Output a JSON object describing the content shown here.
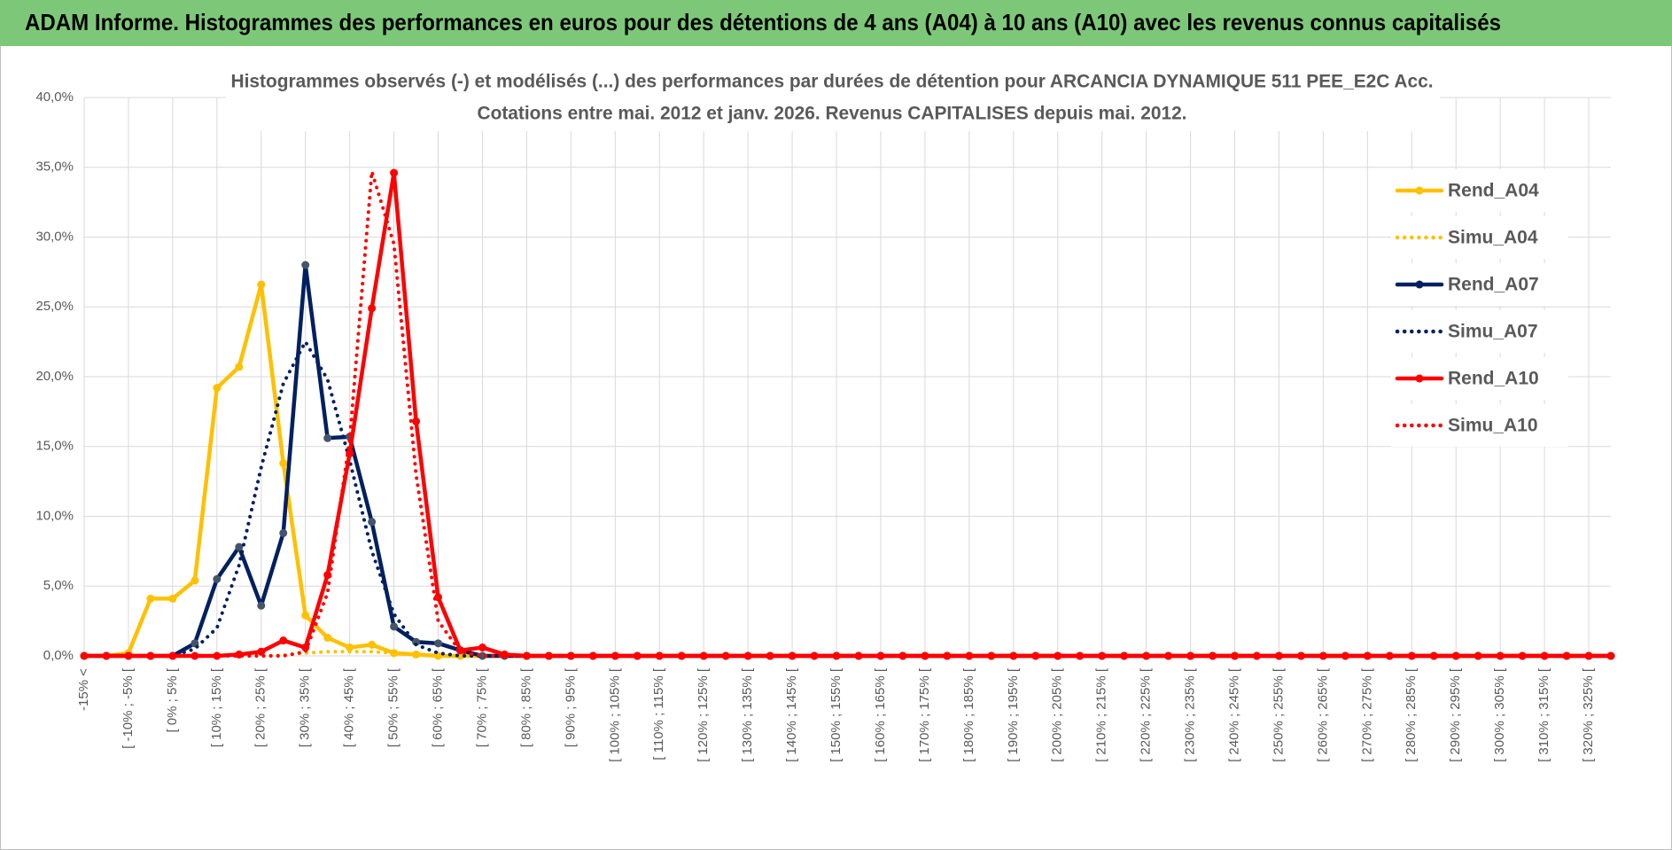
{
  "header": {
    "title": "ADAM Informe. Histogrammes des performances en euros pour des détentions de 4 ans (A04) à 10 ans (A10) avec les revenus connus capitalisés"
  },
  "chart_data": {
    "type": "line",
    "title": "Histogrammes observés (-) et modélisés (...) des performances par durées de détention pour ARCANCIA DYNAMIQUE 511 PEE_E2C Acc.",
    "subtitle": "Cotations entre mai. 2012 et janv. 2026. Revenus CAPITALISES depuis mai. 2012.",
    "categories": [
      "-15% <",
      null,
      "[ -10% ; -5% [",
      null,
      "[ 0% ; 5% [",
      null,
      "[ 10% ; 15% [",
      null,
      "[ 20% ; 25% [",
      null,
      "[ 30% ; 35% [",
      null,
      "[ 40% ; 45% [",
      null,
      "[ 50% ; 55% [",
      null,
      "[ 60% ; 65% [",
      null,
      "[ 70% ; 75% [",
      null,
      "[ 80% ; 85% [",
      null,
      "[ 90% ; 95% [",
      null,
      "[ 100% ; 105% [",
      null,
      "[ 110% ; 115% [",
      null,
      "[ 120% ; 125% [",
      null,
      "[ 130% ; 135% [",
      null,
      "[ 140% ; 145% [",
      null,
      "[ 150% ; 155% [",
      null,
      "[ 160% ; 165% [",
      null,
      "[ 170% ; 175% [",
      null,
      "[ 180% ; 185% [",
      null,
      "[ 190% ; 195% [",
      null,
      "[ 200% ; 205% [",
      null,
      "[ 210% ; 215% [",
      null,
      "[ 220% ; 225% [",
      null,
      "[ 230% ; 235% [",
      null,
      "[ 240% ; 245% [",
      null,
      "[ 250% ; 255% [",
      null,
      "[ 260% ; 265% [",
      null,
      "[ 270% ; 275% [",
      null,
      "[ 280% ; 285% [",
      null,
      "[ 290% ; 295% [",
      null,
      "[ 300% ; 305% [",
      null,
      "[ 310% ; 315% [",
      null,
      "[ 320% ; 325% [",
      null
    ],
    "series": [
      {
        "name": "Rend_A04",
        "color": "#ffc000",
        "style": "solid",
        "marker": true,
        "values": [
          0,
          0,
          0.2,
          4.1,
          4.1,
          5.4,
          19.2,
          20.7,
          26.6,
          13.8,
          2.9,
          1.3,
          0.6,
          0.8,
          0.2,
          0.1,
          0,
          0,
          0,
          0,
          0,
          0,
          0,
          0,
          0,
          0,
          0,
          0,
          0,
          0,
          0,
          0,
          0,
          0,
          0,
          0,
          0,
          0,
          0,
          0,
          0,
          0,
          0,
          0,
          0,
          0,
          0,
          0,
          0,
          0,
          0,
          0,
          0,
          0,
          0,
          0,
          0,
          0,
          0,
          0,
          0,
          0,
          0,
          0,
          0,
          0,
          0,
          0,
          0,
          0
        ]
      },
      {
        "name": "Simu_A04",
        "color": "#ffc000",
        "style": "dotted",
        "marker": false,
        "values": [
          0,
          0,
          0,
          0,
          0,
          0,
          0,
          0,
          0,
          0.05,
          0.2,
          0.3,
          0.3,
          0.3,
          0.2,
          0.1,
          0,
          0,
          0,
          0,
          0,
          0,
          0,
          0,
          0,
          0,
          0,
          0,
          0,
          0,
          0,
          0,
          0,
          0,
          0,
          0,
          0,
          0,
          0,
          0,
          0,
          0,
          0,
          0,
          0,
          0,
          0,
          0,
          0,
          0,
          0,
          0,
          0,
          0,
          0,
          0,
          0,
          0,
          0,
          0,
          0,
          0,
          0,
          0,
          0,
          0,
          0,
          0,
          0,
          0
        ]
      },
      {
        "name": "Rend_A07",
        "color": "#002060",
        "style": "solid",
        "marker": true,
        "values": [
          0,
          0,
          0,
          0,
          0,
          0.9,
          5.5,
          7.8,
          3.6,
          8.8,
          28.0,
          15.6,
          15.7,
          9.6,
          2.1,
          1.0,
          0.9,
          0.4,
          0,
          0,
          0,
          0,
          0,
          0,
          0,
          0,
          0,
          0,
          0,
          0,
          0,
          0,
          0,
          0,
          0,
          0,
          0,
          0,
          0,
          0,
          0,
          0,
          0,
          0,
          0,
          0,
          0,
          0,
          0,
          0,
          0,
          0,
          0,
          0,
          0,
          0,
          0,
          0,
          0,
          0,
          0,
          0,
          0,
          0,
          0,
          0,
          0,
          0,
          0,
          0
        ]
      },
      {
        "name": "Simu_A07",
        "color": "#002060",
        "style": "dotted",
        "marker": false,
        "values": [
          0,
          0,
          0,
          0,
          0,
          0.5,
          2.0,
          6.5,
          13.5,
          19.5,
          22.5,
          19.8,
          14.0,
          7.5,
          3.0,
          0.8,
          0.2,
          0,
          0,
          0,
          0,
          0,
          0,
          0,
          0,
          0,
          0,
          0,
          0,
          0,
          0,
          0,
          0,
          0,
          0,
          0,
          0,
          0,
          0,
          0,
          0,
          0,
          0,
          0,
          0,
          0,
          0,
          0,
          0,
          0,
          0,
          0,
          0,
          0,
          0,
          0,
          0,
          0,
          0,
          0,
          0,
          0,
          0,
          0,
          0,
          0,
          0,
          0,
          0,
          0
        ]
      },
      {
        "name": "Rend_A10",
        "color": "#ff0000",
        "style": "solid",
        "marker": true,
        "values": [
          0,
          0,
          0,
          0,
          0,
          0,
          0,
          0.1,
          0.3,
          1.1,
          0.6,
          5.8,
          14.5,
          24.9,
          34.6,
          16.8,
          4.2,
          0.4,
          0.6,
          0.1,
          0,
          0,
          0,
          0,
          0,
          0,
          0,
          0,
          0,
          0,
          0,
          0,
          0,
          0,
          0,
          0,
          0,
          0,
          0,
          0,
          0,
          0,
          0,
          0,
          0,
          0,
          0,
          0,
          0,
          0,
          0,
          0,
          0,
          0,
          0,
          0,
          0,
          0,
          0,
          0,
          0,
          0,
          0,
          0,
          0,
          0,
          0,
          0,
          0,
          0
        ]
      },
      {
        "name": "Simu_A10",
        "color": "#ff0000",
        "style": "dotted",
        "marker": false,
        "values": [
          0,
          0,
          0,
          0,
          0,
          0,
          0,
          0,
          0,
          0,
          0.3,
          4.5,
          15.5,
          34.7,
          29.5,
          13.0,
          2.5,
          0.3,
          0,
          0,
          0,
          0,
          0,
          0,
          0,
          0,
          0,
          0,
          0,
          0,
          0,
          0,
          0,
          0,
          0,
          0,
          0,
          0,
          0,
          0,
          0,
          0,
          0,
          0,
          0,
          0,
          0,
          0,
          0,
          0,
          0,
          0,
          0,
          0,
          0,
          0,
          0,
          0,
          0,
          0,
          0,
          0,
          0,
          0,
          0,
          0,
          0,
          0,
          0,
          0
        ]
      }
    ],
    "ylim": [
      0,
      40
    ],
    "yticks": [
      {
        "value": 0,
        "label": "0,0%"
      },
      {
        "value": 5,
        "label": "5,0%"
      },
      {
        "value": 10,
        "label": "10,0%"
      },
      {
        "value": 15,
        "label": "15,0%"
      },
      {
        "value": 20,
        "label": "20,0%"
      },
      {
        "value": 25,
        "label": "25,0%"
      },
      {
        "value": 30,
        "label": "30,0%"
      },
      {
        "value": 35,
        "label": "35,0%"
      },
      {
        "value": 40,
        "label": "40,0%"
      }
    ],
    "grid": true,
    "legend": "right"
  }
}
